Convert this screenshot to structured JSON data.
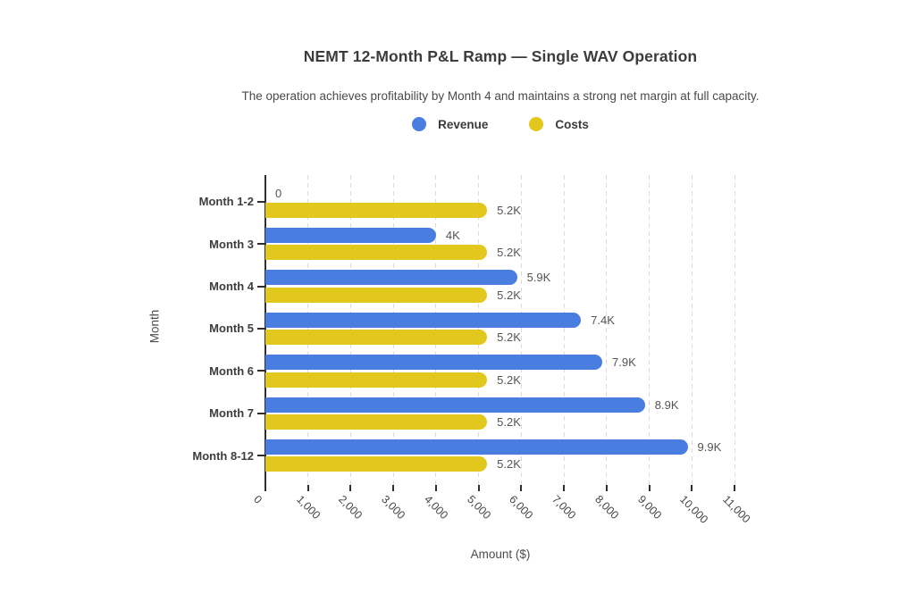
{
  "figure": {
    "title": "NEMT 12-Month P&L Ramp — Single WAV Operation",
    "subtitle": "The operation achieves profitability by Month 4 and maintains a strong net margin at full capacity."
  },
  "legend": [
    {
      "label": "Revenue",
      "color": "#4a7de0"
    },
    {
      "label": "Costs",
      "color": "#e2c71d"
    }
  ],
  "chart_data": {
    "type": "bar",
    "orientation": "horizontal",
    "title": "NEMT 12-Month P&L Ramp — Single WAV Operation",
    "subtitle": "The operation achieves profitability by Month 4 and maintains a strong net margin at full capacity.",
    "categories": [
      "Month 1-2",
      "Month 3",
      "Month 4",
      "Month 5",
      "Month 6",
      "Month 7",
      "Month 8-12"
    ],
    "series": [
      {
        "name": "Revenue",
        "color": "#4a7de0",
        "values": [
          0,
          4000,
          5900,
          7400,
          7900,
          8900,
          9900
        ],
        "labels": [
          "0",
          "4K",
          "5.9K",
          "7.4K",
          "7.9K",
          "8.9K",
          "9.9K"
        ]
      },
      {
        "name": "Costs",
        "color": "#e2c71d",
        "values": [
          5200,
          5200,
          5200,
          5200,
          5200,
          5200,
          5200
        ],
        "labels": [
          "5.2K",
          "5.2K",
          "5.2K",
          "5.2K",
          "5.2K",
          "5.2K",
          "5.2K"
        ]
      }
    ],
    "xlabel": "Amount ($)",
    "ylabel": "Month",
    "xlim": [
      0,
      11000
    ],
    "xticks": [
      0,
      1000,
      2000,
      3000,
      4000,
      5000,
      6000,
      7000,
      8000,
      9000,
      10000,
      11000
    ],
    "xtick_labels": [
      "0",
      "1,000",
      "2,000",
      "3,000",
      "4,000",
      "5,000",
      "6,000",
      "7,000",
      "8,000",
      "9,000",
      "10,000",
      "11,000"
    ],
    "grid": "vertical-dashed",
    "legend_position": "top"
  }
}
